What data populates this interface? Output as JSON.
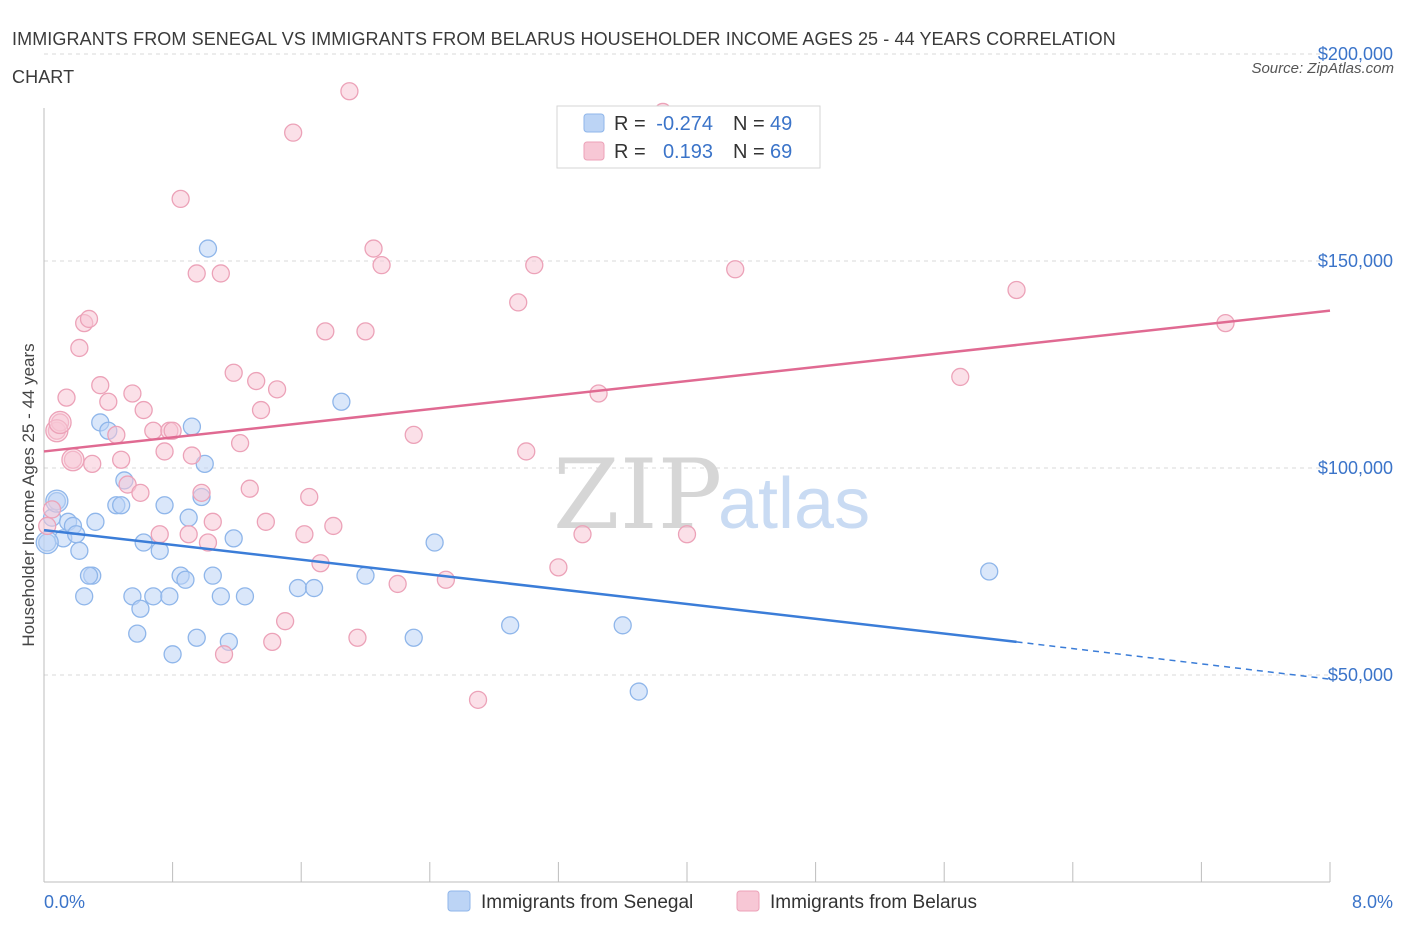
{
  "title": "IMMIGRANTS FROM SENEGAL VS IMMIGRANTS FROM BELARUS HOUSEHOLDER INCOME AGES 25 - 44 YEARS CORRELATION CHART",
  "source": "Source: ZipAtlas.com",
  "watermark": {
    "zip": "ZIP",
    "atlas": "atlas"
  },
  "legend": {
    "r_label": "R =",
    "n_label": "N =",
    "rows": [
      {
        "series": "Immigrants from Senegal",
        "r": "-0.274",
        "n": "49",
        "color": "#8fb6ea",
        "fill": "#bcd4f5"
      },
      {
        "series": "Immigrants from Belarus",
        "r": "0.193",
        "n": "69",
        "color": "#eca2b8",
        "fill": "#f7c7d5"
      }
    ]
  },
  "colors": {
    "senegal_line": "#3b7dd8",
    "belarus_line": "#e06a92",
    "axis_tick": "#3b74c9",
    "grid": "#d9d9d9"
  },
  "chart_data": {
    "type": "scatter",
    "title": "IMMIGRANTS FROM SENEGAL VS IMMIGRANTS FROM BELARUS HOUSEHOLDER INCOME AGES 25 - 44 YEARS CORRELATION CHART",
    "xlabel": "",
    "ylabel": "Householder Income Ages 25 - 44 years",
    "xlim": [
      0,
      8
    ],
    "ylim": [
      0,
      200000
    ],
    "x_tick_labels": [
      "0.0%",
      "8.0%"
    ],
    "y_ticks": [
      50000,
      100000,
      150000,
      200000
    ],
    "y_tick_labels": [
      "$50,000",
      "$100,000",
      "$150,000",
      "$200,000"
    ],
    "grid": true,
    "legend_position": "top-center",
    "series": [
      {
        "name": "Immigrants from Senegal",
        "trend": {
          "x": [
            0.0,
            6.05
          ],
          "y": [
            85000,
            58000
          ],
          "dashed_to": [
            8.0,
            49000
          ]
        },
        "points": [
          [
            0.02,
            82000
          ],
          [
            0.05,
            88000
          ],
          [
            0.08,
            92000
          ],
          [
            0.12,
            83000
          ],
          [
            0.15,
            87000
          ],
          [
            0.18,
            86000
          ],
          [
            0.2,
            84000
          ],
          [
            0.22,
            80000
          ],
          [
            0.25,
            69000
          ],
          [
            0.3,
            74000
          ],
          [
            0.28,
            74000
          ],
          [
            0.32,
            87000
          ],
          [
            0.35,
            111000
          ],
          [
            0.4,
            109000
          ],
          [
            0.45,
            91000
          ],
          [
            0.5,
            97000
          ],
          [
            0.48,
            91000
          ],
          [
            0.55,
            69000
          ],
          [
            0.58,
            60000
          ],
          [
            0.6,
            66000
          ],
          [
            0.62,
            82000
          ],
          [
            0.68,
            69000
          ],
          [
            0.72,
            80000
          ],
          [
            0.75,
            91000
          ],
          [
            0.78,
            69000
          ],
          [
            0.8,
            55000
          ],
          [
            0.85,
            74000
          ],
          [
            0.88,
            73000
          ],
          [
            0.9,
            88000
          ],
          [
            0.92,
            110000
          ],
          [
            0.95,
            59000
          ],
          [
            0.98,
            93000
          ],
          [
            1.0,
            101000
          ],
          [
            1.02,
            153000
          ],
          [
            1.05,
            74000
          ],
          [
            1.1,
            69000
          ],
          [
            1.15,
            58000
          ],
          [
            1.18,
            83000
          ],
          [
            1.25,
            69000
          ],
          [
            1.58,
            71000
          ],
          [
            1.68,
            71000
          ],
          [
            1.85,
            116000
          ],
          [
            2.0,
            74000
          ],
          [
            2.3,
            59000
          ],
          [
            2.43,
            82000
          ],
          [
            2.9,
            62000
          ],
          [
            3.6,
            62000
          ],
          [
            3.7,
            46000
          ],
          [
            5.88,
            75000
          ]
        ]
      },
      {
        "name": "Immigrants from Belarus",
        "trend": {
          "x": [
            0.0,
            8.0
          ],
          "y": [
            104000,
            138000
          ]
        },
        "points": [
          [
            0.02,
            86000
          ],
          [
            0.05,
            90000
          ],
          [
            0.08,
            109000
          ],
          [
            0.1,
            111000
          ],
          [
            0.14,
            117000
          ],
          [
            0.18,
            102000
          ],
          [
            0.22,
            129000
          ],
          [
            0.25,
            135000
          ],
          [
            0.28,
            136000
          ],
          [
            0.3,
            101000
          ],
          [
            0.35,
            120000
          ],
          [
            0.4,
            116000
          ],
          [
            0.45,
            108000
          ],
          [
            0.48,
            102000
          ],
          [
            0.52,
            96000
          ],
          [
            0.55,
            118000
          ],
          [
            0.6,
            94000
          ],
          [
            0.62,
            114000
          ],
          [
            0.68,
            109000
          ],
          [
            0.72,
            84000
          ],
          [
            0.75,
            104000
          ],
          [
            0.78,
            109000
          ],
          [
            0.8,
            109000
          ],
          [
            0.85,
            165000
          ],
          [
            0.9,
            84000
          ],
          [
            0.92,
            103000
          ],
          [
            0.95,
            147000
          ],
          [
            0.98,
            94000
          ],
          [
            1.02,
            82000
          ],
          [
            1.05,
            87000
          ],
          [
            1.1,
            147000
          ],
          [
            1.12,
            55000
          ],
          [
            1.18,
            123000
          ],
          [
            1.22,
            106000
          ],
          [
            1.28,
            95000
          ],
          [
            1.32,
            121000
          ],
          [
            1.35,
            114000
          ],
          [
            1.38,
            87000
          ],
          [
            1.42,
            58000
          ],
          [
            1.45,
            119000
          ],
          [
            1.5,
            63000
          ],
          [
            1.55,
            181000
          ],
          [
            1.62,
            84000
          ],
          [
            1.65,
            93000
          ],
          [
            1.72,
            77000
          ],
          [
            1.75,
            133000
          ],
          [
            1.8,
            86000
          ],
          [
            1.9,
            191000
          ],
          [
            1.95,
            59000
          ],
          [
            2.0,
            133000
          ],
          [
            2.05,
            153000
          ],
          [
            2.1,
            149000
          ],
          [
            2.2,
            72000
          ],
          [
            2.3,
            108000
          ],
          [
            2.5,
            73000
          ],
          [
            2.7,
            44000
          ],
          [
            2.95,
            140000
          ],
          [
            3.0,
            104000
          ],
          [
            3.05,
            149000
          ],
          [
            3.2,
            76000
          ],
          [
            3.35,
            84000
          ],
          [
            3.45,
            118000
          ],
          [
            3.6,
            178000
          ],
          [
            3.85,
            186000
          ],
          [
            4.0,
            84000
          ],
          [
            4.3,
            148000
          ],
          [
            5.7,
            122000
          ],
          [
            6.05,
            143000
          ],
          [
            7.35,
            135000
          ]
        ]
      }
    ]
  }
}
